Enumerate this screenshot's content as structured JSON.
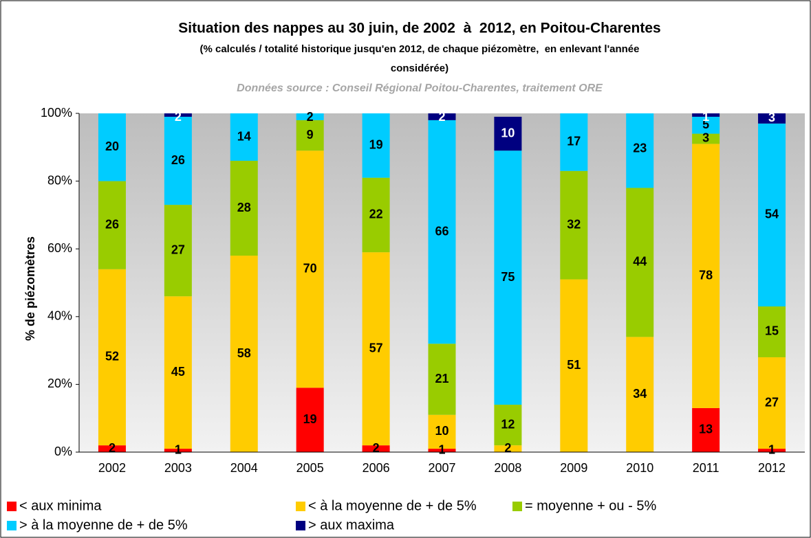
{
  "chart_data": {
    "type": "stacked_bar",
    "title": "Situation des nappes au 30 juin, de 2002  à  2012, en Poitou-Charentes",
    "subtitle": [
      "(% calculés / totalité historique jusqu'en 2012, de chaque piézomètre,  en enlevant l'année",
      "considérée)"
    ],
    "source": "Données source : Conseil Régional Poitou-Charentes, traitement ORE",
    "y_label": "% de piézomètres",
    "categories": [
      "2002",
      "2003",
      "2004",
      "2005",
      "2006",
      "2007",
      "2008",
      "2009",
      "2010",
      "2011",
      "2012"
    ],
    "series": [
      {
        "name": "< aux minima",
        "color": "#ff0000",
        "values": [
          2,
          1,
          null,
          19,
          2,
          1,
          null,
          null,
          null,
          13,
          1
        ]
      },
      {
        "name": "< à la moyenne de + de 5%",
        "color": "#ffcc00",
        "values": [
          52,
          45,
          58,
          70,
          57,
          10,
          2,
          51,
          34,
          78,
          27
        ]
      },
      {
        "name": "= moyenne + ou - 5%",
        "color": "#99cc00",
        "values": [
          26,
          27,
          28,
          9,
          22,
          21,
          12,
          32,
          44,
          3,
          15
        ]
      },
      {
        "name": "> à la moyenne de + de 5%",
        "color": "#00ccff",
        "values": [
          20,
          26,
          14,
          2,
          19,
          66,
          75,
          17,
          23,
          5,
          54
        ]
      },
      {
        "name": "> aux maxima",
        "color": "#000080",
        "values": [
          null,
          2,
          null,
          null,
          null,
          2,
          10,
          null,
          null,
          1,
          3
        ]
      }
    ],
    "ylim": [
      0,
      100
    ],
    "yticks": [
      {
        "value": 0,
        "label": "0%"
      },
      {
        "value": 20,
        "label": "20%"
      },
      {
        "value": 40,
        "label": "40%"
      },
      {
        "value": 60,
        "label": "60%"
      },
      {
        "value": 80,
        "label": "80%"
      },
      {
        "value": 100,
        "label": "100%"
      }
    ],
    "legend": "bottom"
  }
}
